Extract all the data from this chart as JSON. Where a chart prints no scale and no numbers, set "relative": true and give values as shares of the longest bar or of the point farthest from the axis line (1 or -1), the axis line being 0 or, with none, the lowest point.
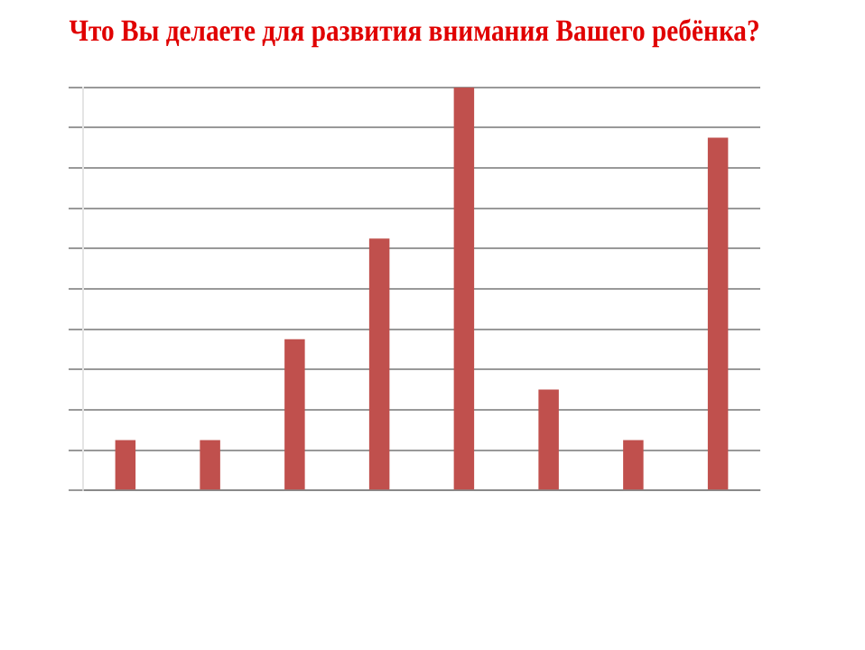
{
  "chart_data": {
    "type": "bar",
    "title": "Что Вы делаете для развития внимания Вашего ребёнка?",
    "categories": [
      null,
      null,
      null,
      null,
      null,
      null,
      null,
      null
    ],
    "relative": true,
    "grid": "y",
    "series": [
      {
        "color": "#c0504d",
        "values": [
          0.125,
          0.125,
          0.375,
          0.625,
          1,
          0.25,
          0.125,
          0.875
        ]
      }
    ]
  }
}
